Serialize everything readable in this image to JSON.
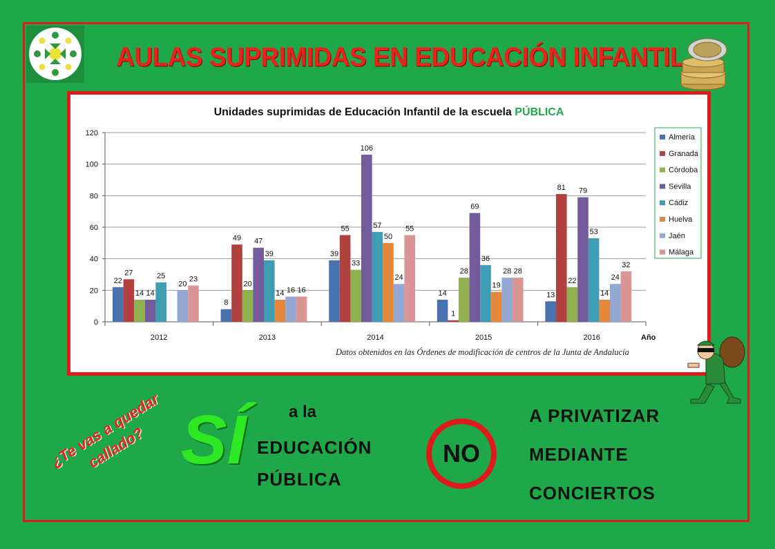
{
  "title": "AULAS SUPRIMIDAS EN EDUCACIÓN INFANTIL",
  "colors": {
    "background": "#1fa84a",
    "frame": "#e01a1a",
    "title": "#e8231b"
  },
  "chart_data": {
    "type": "bar",
    "title_prefix": "Unidades suprimidas de Educación Infantil de la escuela ",
    "title_highlight": "PÚBLICA",
    "xlabel": "Año",
    "ylabel": "",
    "ylim": [
      0,
      120
    ],
    "yticks": [
      0,
      20,
      40,
      60,
      80,
      100,
      120
    ],
    "grid": true,
    "legend_position": "right",
    "categories": [
      "2012",
      "2013",
      "2014",
      "2015",
      "2016"
    ],
    "series": [
      {
        "name": "Almería",
        "color": "#4a72b0",
        "values": [
          22,
          8,
          39,
          14,
          13
        ]
      },
      {
        "name": "Granada",
        "color": "#b0413e",
        "values": [
          27,
          49,
          55,
          1,
          81
        ]
      },
      {
        "name": "Córdoba",
        "color": "#8fb150",
        "values": [
          14,
          20,
          33,
          28,
          22
        ]
      },
      {
        "name": "Sevilla",
        "color": "#735a9a",
        "values": [
          14,
          47,
          106,
          69,
          79
        ]
      },
      {
        "name": "Cádiz",
        "color": "#3f9db3",
        "values": [
          25,
          39,
          57,
          36,
          53
        ]
      },
      {
        "name": "Huelva",
        "color": "#e5883a",
        "values": [
          null,
          14,
          50,
          19,
          14
        ]
      },
      {
        "name": "Jaén",
        "color": "#93a9d3",
        "values": [
          20,
          16,
          24,
          28,
          24
        ]
      },
      {
        "name": "Málaga",
        "color": "#d99694",
        "values": [
          23,
          16,
          55,
          28,
          32
        ]
      }
    ],
    "source": "Datos obtenidos en las  Órdenes de modificación de centros de la Junta de Andalucía"
  },
  "bottom": {
    "question": "¿Te vas a quedar callado?",
    "si": "SÍ",
    "ala": "a la",
    "edu_line1": "EDUCACIÓN",
    "edu_line2": "PÚBLICA",
    "no": "NO",
    "priv_line1": "A PRIVATIZAR",
    "priv_line2": "MEDIANTE",
    "priv_line3": "CONCIERTOS"
  }
}
